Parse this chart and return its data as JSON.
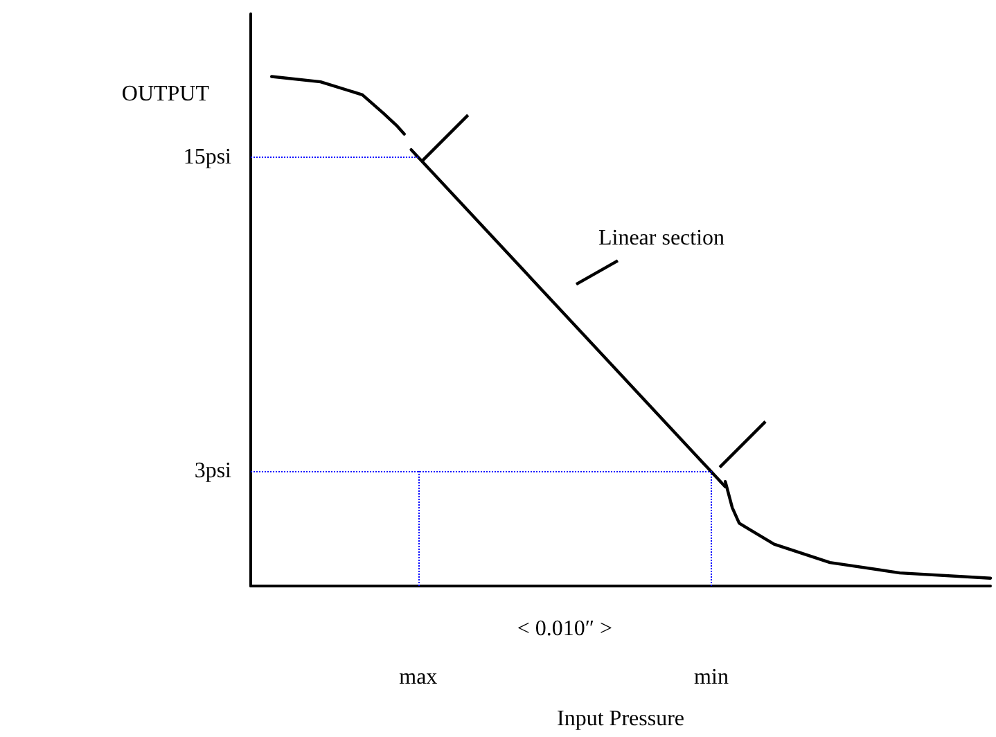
{
  "chart_data": {
    "type": "line",
    "xlabel": "Input Pressure",
    "ylabel": "OUTPUT",
    "categories": [
      null,
      null,
      null,
      null,
      null,
      null,
      null,
      null,
      null,
      null,
      null,
      null,
      null,
      null,
      null,
      null,
      null,
      null,
      null,
      null,
      null,
      null,
      null,
      null,
      "max",
      null,
      null,
      null,
      null,
      null,
      null,
      null,
      null,
      null,
      null,
      null,
      null,
      null,
      null,
      null,
      null,
      null,
      null,
      null,
      null,
      null,
      null,
      null,
      null,
      null,
      null,
      null,
      null,
      null,
      null,
      null,
      null,
      null,
      null,
      null,
      null,
      null,
      null,
      null,
      null,
      null,
      "min",
      null,
      null,
      null,
      null,
      null,
      null,
      null,
      null,
      null,
      null,
      null,
      null,
      null,
      null,
      null,
      null,
      null,
      null,
      null,
      null,
      null,
      null,
      null,
      null,
      null,
      null,
      null,
      null,
      null,
      null,
      null,
      null,
      null,
      null,
      null,
      null,
      null,
      null,
      null,
      null
    ],
    "ylim": [
      -1.4,
      20.5
    ],
    "yticks": [
      {
        "value": 3,
        "label": "3psi"
      },
      {
        "value": 15,
        "label": "15psi"
      }
    ],
    "series": [
      {
        "color": "#000000",
        "values": [
          null,
          null,
          null,
          18.1,
          null,
          null,
          null,
          null,
          null,
          null,
          17.9,
          null,
          null,
          null,
          null,
          null,
          17.4,
          null,
          null,
          16.7,
          null,
          16.2,
          15.9,
          null,
          null,
          null,
          null,
          null,
          null,
          null,
          null,
          null,
          null,
          null,
          null,
          null,
          null,
          null,
          null,
          null,
          null,
          null,
          null,
          null,
          null,
          null,
          null,
          null,
          null,
          null,
          null,
          null,
          null,
          null,
          null,
          null,
          null,
          null,
          null,
          null,
          null,
          null,
          null,
          null,
          null,
          null,
          null,
          null,
          null,
          null,
          null,
          null,
          null,
          null,
          null,
          null,
          null,
          null,
          null,
          null,
          null,
          null,
          null,
          null,
          null,
          null,
          null,
          null,
          null,
          null,
          null,
          null,
          null,
          null,
          null,
          null,
          null,
          null,
          null,
          null,
          null,
          null,
          null,
          null,
          null,
          null,
          null
        ]
      },
      {
        "color": "#000000",
        "values": [
          null,
          null,
          null,
          null,
          null,
          null,
          null,
          null,
          null,
          null,
          null,
          null,
          null,
          null,
          null,
          null,
          null,
          null,
          null,
          null,
          null,
          null,
          null,
          15.3,
          null,
          null,
          null,
          null,
          null,
          null,
          null,
          null,
          null,
          null,
          null,
          null,
          null,
          null,
          null,
          null,
          null,
          null,
          null,
          null,
          null,
          null,
          null,
          null,
          null,
          null,
          null,
          null,
          null,
          null,
          null,
          null,
          null,
          null,
          null,
          null,
          null,
          null,
          null,
          null,
          null,
          null,
          null,
          null,
          2.4,
          null,
          null,
          null,
          null,
          null,
          null,
          null,
          null,
          null,
          null,
          null,
          null,
          null,
          null,
          null,
          null,
          null,
          null,
          null,
          null,
          null,
          null,
          null,
          null,
          null,
          null,
          null,
          null,
          null,
          null,
          null,
          null,
          null,
          null,
          null,
          null,
          null,
          null
        ]
      },
      {
        "color": "#000000",
        "values": [
          null,
          null,
          null,
          null,
          null,
          null,
          null,
          null,
          null,
          null,
          null,
          null,
          null,
          null,
          null,
          null,
          null,
          null,
          null,
          null,
          null,
          null,
          null,
          null,
          null,
          null,
          null,
          null,
          null,
          null,
          null,
          null,
          null,
          null,
          null,
          null,
          null,
          null,
          null,
          null,
          null,
          null,
          null,
          null,
          null,
          null,
          null,
          null,
          null,
          null,
          null,
          null,
          null,
          null,
          null,
          null,
          null,
          null,
          null,
          null,
          null,
          null,
          null,
          null,
          null,
          null,
          null,
          null,
          2.6,
          1.6,
          1.0,
          null,
          null,
          null,
          null,
          0.2,
          null,
          null,
          null,
          null,
          null,
          null,
          null,
          -0.5,
          null,
          null,
          null,
          null,
          null,
          null,
          null,
          null,
          null,
          -0.9,
          null,
          null,
          null,
          null,
          null,
          null,
          null,
          null,
          null,
          null,
          null,
          null,
          -1.1
        ]
      }
    ],
    "ref_lines": [
      {
        "axis": "y",
        "value": 15,
        "color": "#0000ff",
        "line_style": "dotted"
      },
      {
        "axis": "x",
        "value": "max",
        "color": "#0000ff",
        "line_style": "dotted"
      },
      {
        "axis": "y",
        "value": 3,
        "color": "#0000ff",
        "line_style": "dotted"
      },
      {
        "axis": "x",
        "value": "min",
        "color": "#0000ff",
        "line_style": "dotted"
      }
    ],
    "annotations": [
      "Linear section",
      "< 0.010″ >"
    ],
    "marker": "none",
    "line_style": "solid",
    "grid": false
  }
}
